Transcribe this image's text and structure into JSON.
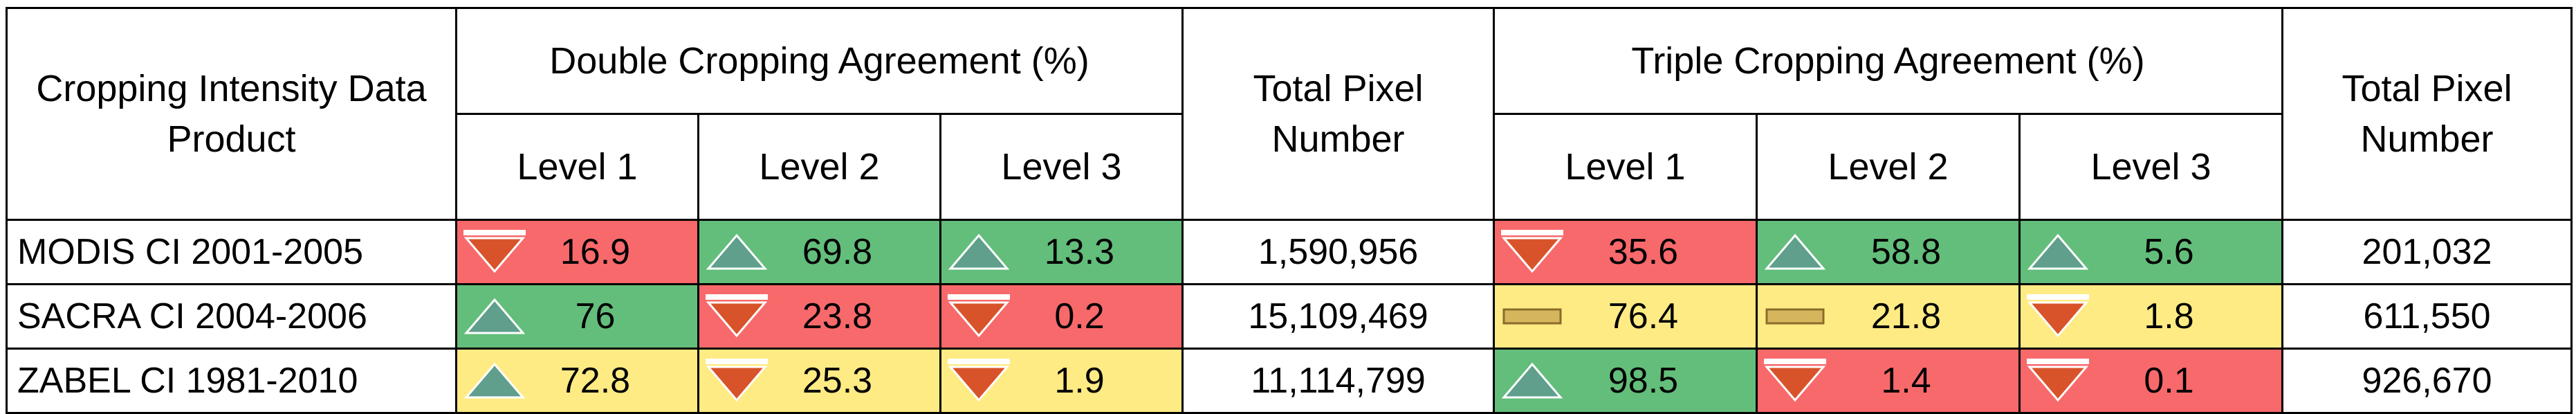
{
  "header": {
    "product": "Cropping Intensity Data Product",
    "double": "Double Cropping Agreement (%)",
    "triple": "Triple Cropping Agreement (%)",
    "total": "Total Pixel Number",
    "levels": [
      "Level 1",
      "Level 2",
      "Level 3"
    ]
  },
  "colors": {
    "red": "#f8696b",
    "green": "#63be7b",
    "yellow": "#ffeb84"
  },
  "rows": [
    {
      "name": "MODIS CI 2001-2005",
      "double": [
        {
          "value": "16.9",
          "icon": "down-arrow-icon",
          "color": "red"
        },
        {
          "value": "69.8",
          "icon": "up-arrow-icon",
          "color": "green"
        },
        {
          "value": "13.3",
          "icon": "up-arrow-icon",
          "color": "green"
        }
      ],
      "double_total": "1,590,956",
      "triple": [
        {
          "value": "35.6",
          "icon": "down-arrow-icon",
          "color": "red"
        },
        {
          "value": "58.8",
          "icon": "up-arrow-icon",
          "color": "green"
        },
        {
          "value": "5.6",
          "icon": "up-arrow-icon",
          "color": "green"
        }
      ],
      "triple_total": "201,032"
    },
    {
      "name": "SACRA CI 2004-2006",
      "double": [
        {
          "value": "76",
          "icon": "up-arrow-icon",
          "color": "green"
        },
        {
          "value": "23.8",
          "icon": "down-arrow-icon",
          "color": "red"
        },
        {
          "value": "0.2",
          "icon": "down-arrow-icon",
          "color": "red"
        }
      ],
      "double_total": "15,109,469",
      "triple": [
        {
          "value": "76.4",
          "icon": "flat-bar-icon",
          "color": "yellow"
        },
        {
          "value": "21.8",
          "icon": "flat-bar-icon",
          "color": "yellow"
        },
        {
          "value": "1.8",
          "icon": "down-arrow-icon",
          "color": "yellow"
        }
      ],
      "triple_total": "611,550"
    },
    {
      "name": "ZABEL CI 1981-2010",
      "double": [
        {
          "value": "72.8",
          "icon": "up-arrow-icon",
          "color": "yellow"
        },
        {
          "value": "25.3",
          "icon": "down-arrow-icon",
          "color": "yellow"
        },
        {
          "value": "1.9",
          "icon": "down-arrow-icon",
          "color": "yellow"
        }
      ],
      "double_total": "11,114,799",
      "triple": [
        {
          "value": "98.5",
          "icon": "up-arrow-icon",
          "color": "green"
        },
        {
          "value": "1.4",
          "icon": "down-arrow-icon",
          "color": "red"
        },
        {
          "value": "0.1",
          "icon": "down-arrow-icon",
          "color": "red"
        }
      ],
      "triple_total": "926,670"
    }
  ]
}
